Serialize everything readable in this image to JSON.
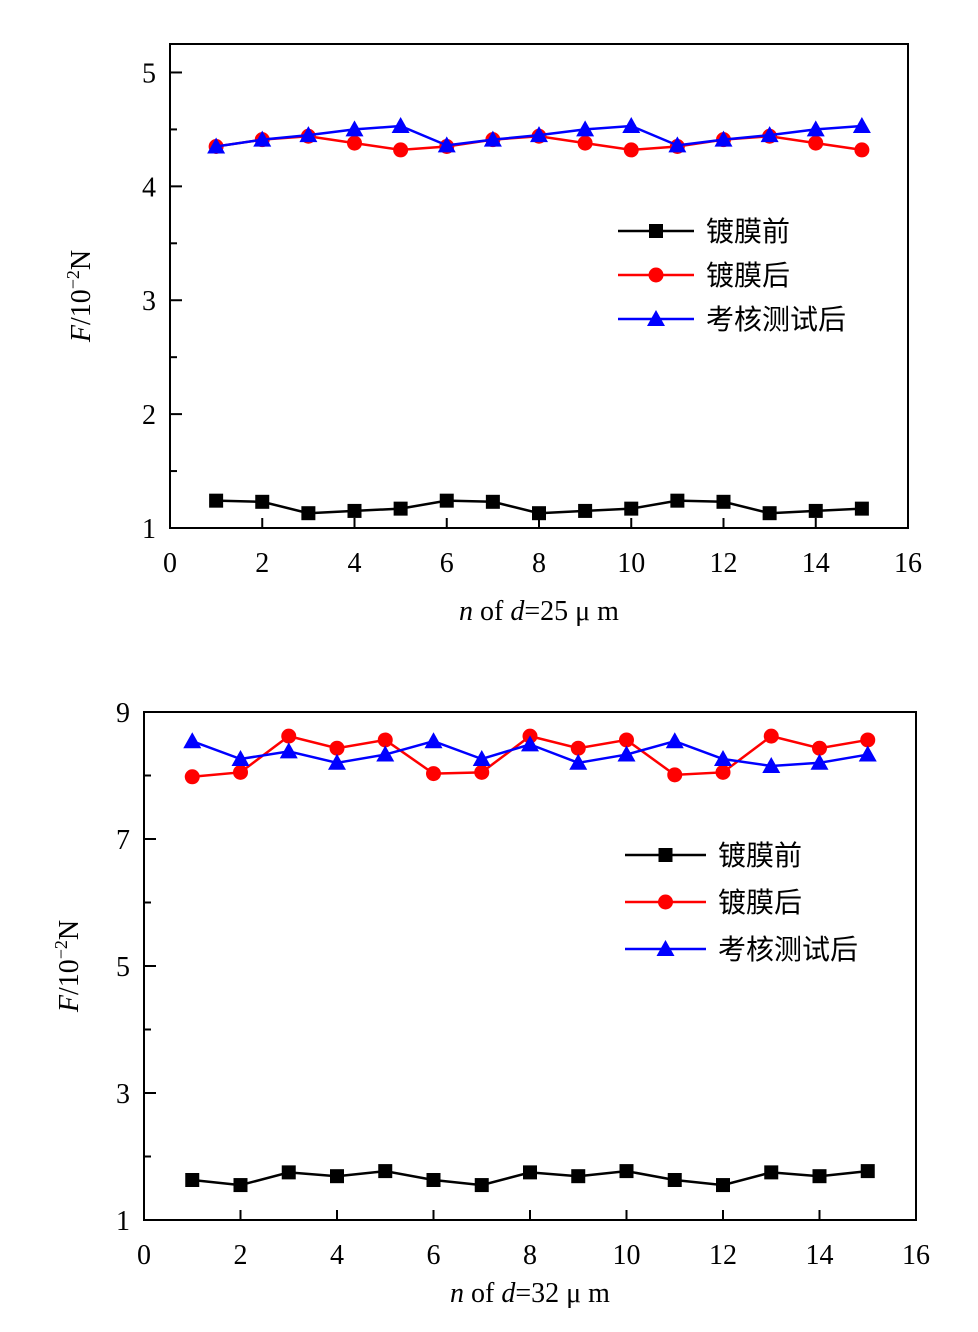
{
  "chart_data": [
    {
      "type": "line",
      "xlabel": "n of d=25 μ m",
      "xlabel_parts": {
        "n": "n",
        "of": " of ",
        "d": "d",
        "rest": "=25  μ m"
      },
      "ylabel": "F/10⁻²N",
      "ylabel_parts": {
        "f": "F",
        "unit": "/10",
        "exp": "−2",
        "n": "N"
      },
      "xlim": [
        0,
        16
      ],
      "ylim": [
        1,
        5.25
      ],
      "xticks": [
        0,
        2,
        4,
        6,
        8,
        10,
        12,
        14,
        16
      ],
      "yticks": [
        1,
        2,
        3,
        4,
        5
      ],
      "yticks_minor": [
        1.5,
        2.5,
        3.5,
        4.5
      ],
      "grid": false,
      "legend_position": "right-middle",
      "x": [
        1,
        2,
        3,
        4,
        5,
        6,
        7,
        8,
        9,
        10,
        11,
        12,
        13,
        14,
        15
      ],
      "series": [
        {
          "name": "镀膜前",
          "color": "#000000",
          "marker": "square",
          "values": [
            1.24,
            1.23,
            1.13,
            1.15,
            1.17,
            1.24,
            1.23,
            1.13,
            1.15,
            1.17,
            1.24,
            1.23,
            1.13,
            1.15,
            1.17
          ]
        },
        {
          "name": "镀膜后",
          "color": "#ff0000",
          "marker": "circle",
          "values": [
            4.35,
            4.41,
            4.44,
            4.38,
            4.32,
            4.35,
            4.41,
            4.44,
            4.38,
            4.32,
            4.35,
            4.41,
            4.44,
            4.38,
            4.32
          ]
        },
        {
          "name": "考核测试后",
          "color": "#0000ff",
          "marker": "triangle",
          "values": [
            4.35,
            4.41,
            4.45,
            4.5,
            4.53,
            4.36,
            4.41,
            4.45,
            4.5,
            4.53,
            4.36,
            4.41,
            4.45,
            4.5,
            4.53
          ]
        }
      ]
    },
    {
      "type": "line",
      "xlabel": "n of d=32 μ m",
      "xlabel_parts": {
        "n": "n",
        "of": " of ",
        "d": "d",
        "rest": "=32  μ m"
      },
      "ylabel": "F/10⁻²N",
      "ylabel_parts": {
        "f": "F",
        "unit": "/10",
        "exp": "−2",
        "n": "N"
      },
      "xlim": [
        0,
        16
      ],
      "ylim": [
        1,
        9
      ],
      "xticks": [
        0,
        2,
        4,
        6,
        8,
        10,
        12,
        14,
        16
      ],
      "yticks": [
        1,
        3,
        5,
        7,
        9
      ],
      "yticks_minor": [
        2,
        4,
        6,
        8
      ],
      "grid": false,
      "legend_position": "right-middle",
      "x": [
        1,
        2,
        3,
        4,
        5,
        6,
        7,
        8,
        9,
        10,
        11,
        12,
        13,
        14,
        15
      ],
      "series": [
        {
          "name": "镀膜前",
          "color": "#000000",
          "marker": "square",
          "values": [
            1.63,
            1.55,
            1.75,
            1.69,
            1.77,
            1.63,
            1.55,
            1.75,
            1.69,
            1.77,
            1.63,
            1.55,
            1.75,
            1.69,
            1.77
          ]
        },
        {
          "name": "镀膜后",
          "color": "#ff0000",
          "marker": "circle",
          "values": [
            7.98,
            8.05,
            8.62,
            8.43,
            8.56,
            8.03,
            8.05,
            8.62,
            8.43,
            8.56,
            8.01,
            8.05,
            8.62,
            8.43,
            8.56
          ]
        },
        {
          "name": "考核测试后",
          "color": "#0000ff",
          "marker": "triangle",
          "values": [
            8.54,
            8.26,
            8.38,
            8.2,
            8.33,
            8.54,
            8.26,
            8.49,
            8.2,
            8.33,
            8.54,
            8.26,
            8.15,
            8.2,
            8.33
          ]
        }
      ]
    }
  ]
}
